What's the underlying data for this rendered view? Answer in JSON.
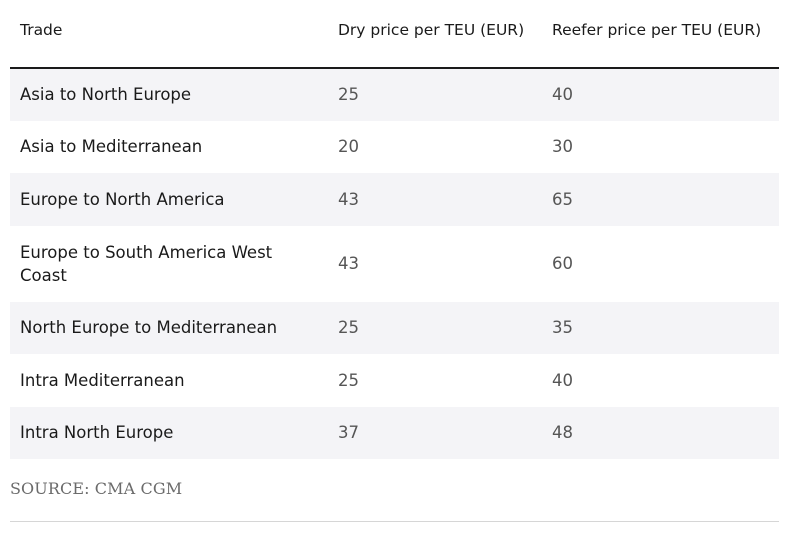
{
  "table": {
    "headers": [
      "Trade",
      "Dry price per TEU (EUR)",
      "Reefer price per TEU (EUR)"
    ],
    "rows": [
      [
        "Asia to North Europe",
        "25",
        "40"
      ],
      [
        "Asia to Mediterranean",
        "20",
        "30"
      ],
      [
        "Europe to North America",
        "43",
        "65"
      ],
      [
        "Europe to South America West Coast",
        "43",
        "60"
      ],
      [
        "North Europe to Mediterranean",
        "25",
        "35"
      ],
      [
        "Intra Mediterranean",
        "25",
        "40"
      ],
      [
        "Intra North Europe",
        "37",
        "48"
      ]
    ]
  },
  "source": "SOURCE: CMA CGM"
}
